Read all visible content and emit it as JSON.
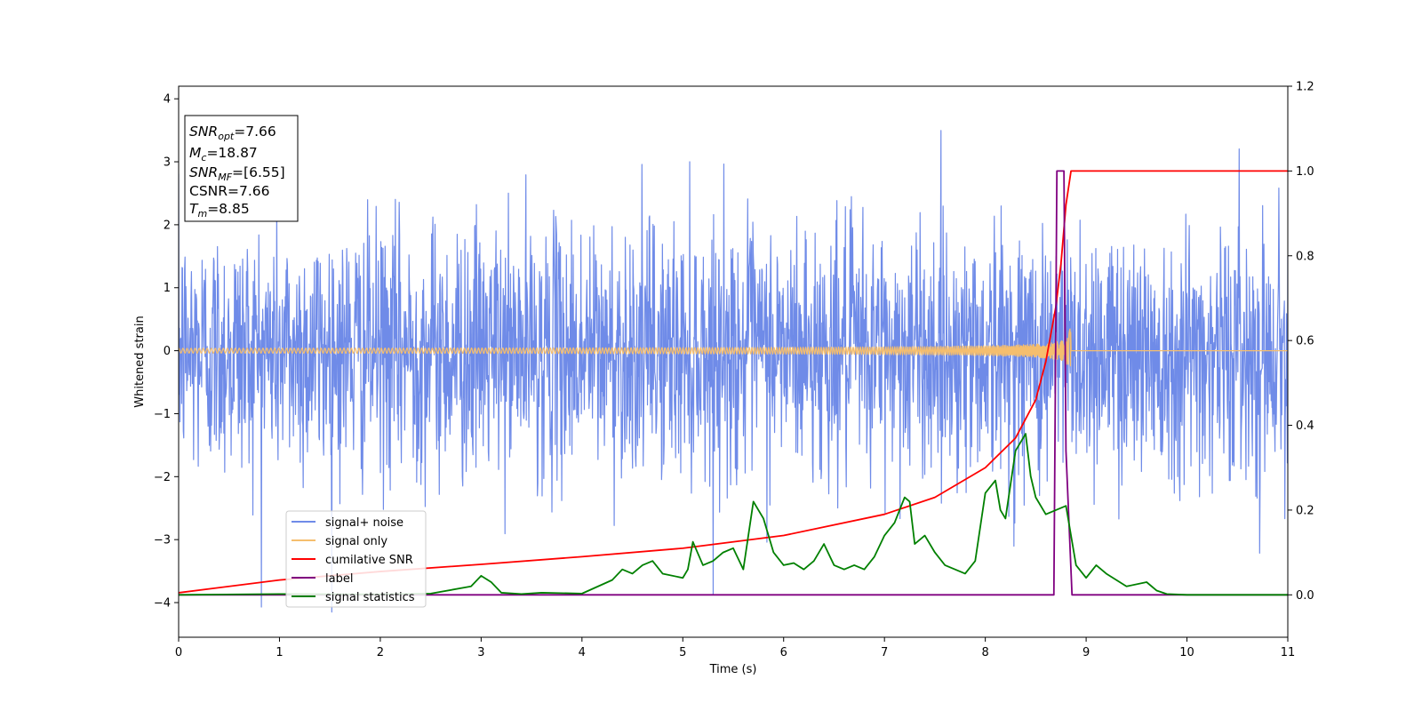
{
  "chart_data": {
    "type": "line",
    "xlabel": "Time (s)",
    "ylabel": "Whitened strain",
    "xlim": [
      0,
      11
    ],
    "ylim_left": [
      -4.55,
      4.2
    ],
    "ylim_right": [
      -0.1,
      1.2
    ],
    "x_ticks": [
      0,
      1,
      2,
      3,
      4,
      5,
      6,
      7,
      8,
      9,
      10,
      11
    ],
    "y_ticks_left": [
      -4,
      -3,
      -2,
      -1,
      0,
      1,
      2,
      3,
      4
    ],
    "y_ticks_right": [
      0.0,
      0.2,
      0.4,
      0.6,
      0.8,
      1.0,
      1.2
    ],
    "tick_labels_left": [
      "−4",
      "−3",
      "−2",
      "−1",
      "0",
      "1",
      "2",
      "3",
      "4"
    ],
    "tick_labels_right": [
      "0.0",
      "0.2",
      "0.4",
      "0.6",
      "0.8",
      "1.0",
      "1.2"
    ],
    "grid": false,
    "legend_placement": "lower-left",
    "info_box": {
      "lines": [
        {
          "base": "SNR",
          "sub": "opt",
          "value": "=7.66"
        },
        {
          "base": "M",
          "sub": "c",
          "value": "=18.87"
        },
        {
          "base": "SNR",
          "sub": "MF",
          "value": "=[6.55]"
        },
        {
          "base": "CSNR",
          "sub": "",
          "value": "=7.66"
        },
        {
          "base": "T",
          "sub": "m",
          "value": "=8.85"
        }
      ]
    },
    "series": [
      {
        "name": "signal+ noise",
        "axis": "left",
        "color": "#6f8be8",
        "description_values": {
          "noise_sigma": 1.0,
          "typical_peak": 2.6,
          "max_peak": 3.8,
          "min_trough": -4.15
        }
      },
      {
        "name": "signal only",
        "axis": "left",
        "color": "#f5be6e",
        "chirp": {
          "merger_time": 8.85,
          "peak_amplitude": 0.85
        }
      },
      {
        "name": "cumilative SNR",
        "axis": "right",
        "color": "#ff0000",
        "x": [
          0,
          1,
          2,
          3,
          4,
          5,
          6,
          7,
          7.5,
          8,
          8.3,
          8.5,
          8.6,
          8.7,
          8.75,
          8.8,
          8.85,
          8.9,
          9,
          10,
          11
        ],
        "values": [
          0.005,
          0.035,
          0.055,
          0.072,
          0.09,
          0.11,
          0.14,
          0.19,
          0.23,
          0.3,
          0.37,
          0.46,
          0.55,
          0.68,
          0.78,
          0.92,
          1.0,
          1.0,
          1.0,
          1.0,
          1.0
        ]
      },
      {
        "name": "label",
        "axis": "right",
        "color": "#800080",
        "x": [
          0,
          8.68,
          8.71,
          8.78,
          8.8,
          8.86,
          11
        ],
        "values": [
          0,
          0,
          1.0,
          1.0,
          0.34,
          0,
          0
        ]
      },
      {
        "name": "signal statistics",
        "axis": "right",
        "color": "#008000",
        "x": [
          0,
          1,
          2,
          2.5,
          2.9,
          3.0,
          3.1,
          3.2,
          3.4,
          3.6,
          4.0,
          4.3,
          4.4,
          4.5,
          4.6,
          4.7,
          4.8,
          5.0,
          5.05,
          5.1,
          5.2,
          5.3,
          5.4,
          5.5,
          5.6,
          5.7,
          5.75,
          5.8,
          5.9,
          6.0,
          6.1,
          6.2,
          6.3,
          6.4,
          6.5,
          6.6,
          6.7,
          6.8,
          6.9,
          7.0,
          7.1,
          7.2,
          7.25,
          7.3,
          7.4,
          7.5,
          7.6,
          7.7,
          7.8,
          7.9,
          8.0,
          8.1,
          8.15,
          8.2,
          8.3,
          8.4,
          8.45,
          8.5,
          8.6,
          8.7,
          8.8,
          8.9,
          9.0,
          9.1,
          9.2,
          9.4,
          9.6,
          9.7,
          9.8,
          10,
          11
        ],
        "values": [
          0.0,
          0.002,
          0.001,
          0.003,
          0.02,
          0.045,
          0.03,
          0.005,
          0.002,
          0.005,
          0.003,
          0.035,
          0.06,
          0.05,
          0.07,
          0.08,
          0.05,
          0.04,
          0.06,
          0.125,
          0.07,
          0.08,
          0.1,
          0.11,
          0.06,
          0.22,
          0.2,
          0.18,
          0.1,
          0.07,
          0.075,
          0.06,
          0.08,
          0.12,
          0.07,
          0.06,
          0.07,
          0.06,
          0.09,
          0.14,
          0.17,
          0.23,
          0.22,
          0.12,
          0.14,
          0.1,
          0.07,
          0.06,
          0.05,
          0.08,
          0.24,
          0.27,
          0.2,
          0.18,
          0.34,
          0.38,
          0.28,
          0.23,
          0.19,
          0.2,
          0.21,
          0.07,
          0.04,
          0.07,
          0.05,
          0.02,
          0.03,
          0.01,
          0.002,
          0.0,
          0.0
        ]
      }
    ]
  }
}
